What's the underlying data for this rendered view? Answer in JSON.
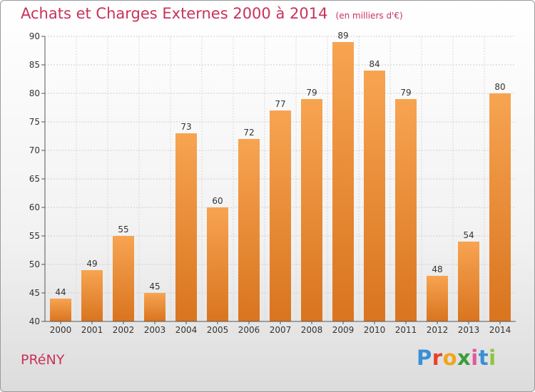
{
  "header": {
    "title": "Achats et Charges Externes 2000 à 2014",
    "unit": "(en milliers d'€)"
  },
  "footer": {
    "commune": "PRéNY",
    "logo_letters": [
      "P",
      "r",
      "o",
      "x",
      "i",
      "t",
      "i"
    ],
    "logo_colors": [
      "#3b8fd4",
      "#e8412f",
      "#f2a51a",
      "#3a9d3a",
      "#e05a9e",
      "#3b8fd4",
      "#8bc53f"
    ]
  },
  "chart_data": {
    "type": "bar",
    "title": "Achats et Charges Externes 2000 à 2014",
    "subtitle": "(en milliers d'€)",
    "categories": [
      "2000",
      "2001",
      "2002",
      "2003",
      "2004",
      "2005",
      "2006",
      "2007",
      "2008",
      "2009",
      "2010",
      "2011",
      "2012",
      "2013",
      "2014"
    ],
    "values": [
      44,
      49,
      55,
      45,
      73,
      60,
      72,
      77,
      79,
      89,
      84,
      79,
      48,
      54,
      80
    ],
    "ylim": [
      40,
      90
    ],
    "yticks": [
      40,
      45,
      50,
      55,
      60,
      65,
      70,
      75,
      80,
      85,
      90
    ],
    "grid": true,
    "bar_color_light": "#f7a451",
    "bar_color_dark": "#d9741f"
  }
}
